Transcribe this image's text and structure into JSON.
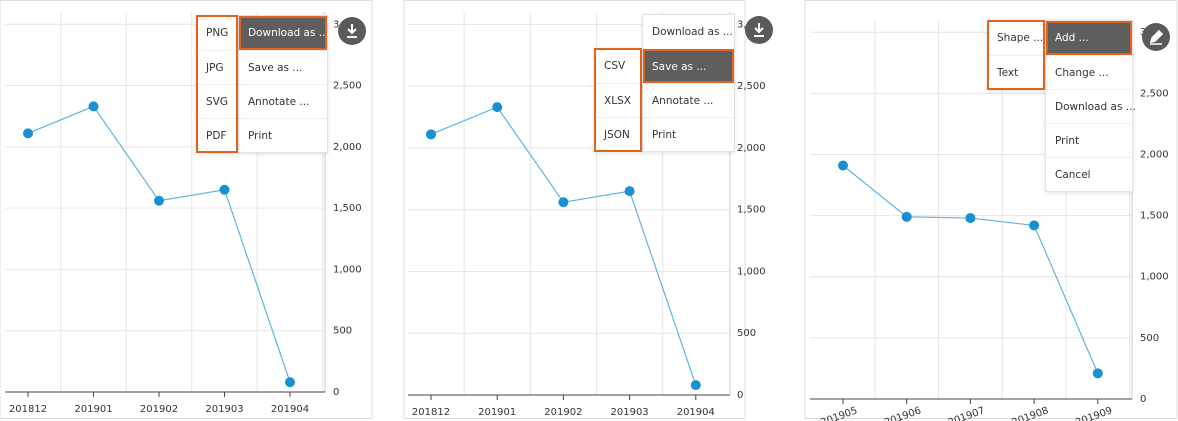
{
  "chart_data": [
    {
      "type": "line",
      "categories": [
        "201812",
        "201901",
        "201902",
        "201903",
        "201904"
      ],
      "values": [
        2110,
        2330,
        1560,
        1650,
        80
      ],
      "color": "#1a8fd1",
      "ylim": [
        0,
        3100
      ],
      "yticks": [
        0,
        500,
        {
          "value": 1000,
          "label": "1,000"
        },
        {
          "value": 1500,
          "label": "1,500"
        },
        {
          "value": 2000,
          "label": "2,000"
        },
        {
          "value": 2500,
          "label": "2,500"
        },
        {
          "value": 3000,
          "label": "3,000"
        }
      ],
      "grid": true
    },
    {
      "type": "line",
      "categories": [
        "201812",
        "201901",
        "201902",
        "201903",
        "201904"
      ],
      "values": [
        2110,
        2330,
        1560,
        1650,
        80
      ],
      "color": "#1a8fd1",
      "ylim": [
        0,
        3100
      ],
      "yticks": [
        0,
        500,
        {
          "value": 1000,
          "label": "1,000"
        },
        {
          "value": 1500,
          "label": "1,500"
        },
        {
          "value": 2000,
          "label": "2,000"
        },
        {
          "value": 2500,
          "label": "2,500"
        },
        {
          "value": 3000,
          "label": "3,000"
        }
      ],
      "grid": true
    },
    {
      "type": "line",
      "categories": [
        "201905",
        "201906",
        "201907",
        "201908",
        "201909"
      ],
      "values": [
        1910,
        1490,
        1480,
        1420,
        210
      ],
      "color": "#1a8fd1",
      "ylim": [
        0,
        3100
      ],
      "yticks": [
        0,
        500,
        {
          "value": 1000,
          "label": "1,000"
        },
        {
          "value": 1500,
          "label": "1,500"
        },
        {
          "value": 2000,
          "label": "2,000"
        },
        {
          "value": 2500,
          "label": "2,500"
        },
        {
          "value": 3000,
          "label": "3,000"
        }
      ],
      "grid": true
    }
  ],
  "menus": [
    {
      "items": [
        "Download as ...",
        "Save as ...",
        "Annotate ...",
        "Print"
      ],
      "active": 0,
      "submenu": [
        "PNG",
        "JPG",
        "SVG",
        "PDF"
      ]
    },
    {
      "items": [
        "Download as ...",
        "Save as ...",
        "Annotate ...",
        "Print"
      ],
      "active": 1,
      "submenu": [
        "CSV",
        "XLSX",
        "JSON"
      ]
    },
    {
      "items": [
        "Add ...",
        "Change ...",
        "Download as ...",
        "Print",
        "Cancel"
      ],
      "active": 0,
      "submenu": [
        "Shape ...",
        "Text"
      ]
    }
  ]
}
